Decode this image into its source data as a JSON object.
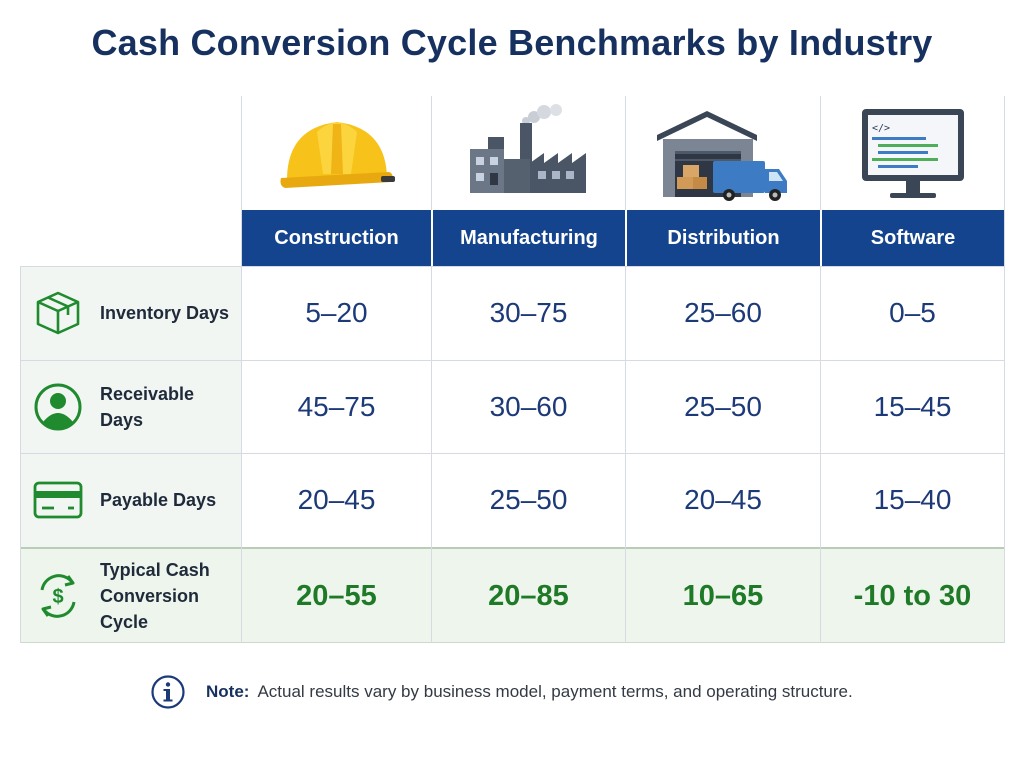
{
  "title": "Cash Conversion Cycle Benchmarks by Industry",
  "colors": {
    "header": "#15448e",
    "accent_green": "#1f7a28",
    "value_blue": "#1d3a78",
    "title": "#16305f"
  },
  "columns": [
    {
      "label": "Construction",
      "icon": "hard-hat-icon"
    },
    {
      "label": "Manufacturing",
      "icon": "factory-icon"
    },
    {
      "label": "Distribution",
      "icon": "warehouse-truck-icon"
    },
    {
      "label": "Software",
      "icon": "code-monitor-icon"
    }
  ],
  "rows": [
    {
      "label": "Inventory Days",
      "icon": "box-icon",
      "values": [
        "5–20",
        "30–75",
        "25–60",
        "0–5"
      ]
    },
    {
      "label": "Receivable Days",
      "icon": "user-circle-icon",
      "values": [
        "45–75",
        "30–60",
        "25–50",
        "15–45"
      ]
    },
    {
      "label": "Payable Days",
      "icon": "credit-card-icon",
      "values": [
        "20–45",
        "25–50",
        "20–45",
        "15–40"
      ]
    }
  ],
  "total": {
    "label_line1": "Typical Cash",
    "label_line2": "Conversion Cycle",
    "icon": "cash-cycle-icon",
    "values": [
      "20–55",
      "20–85",
      "10–65",
      "-10 to 30"
    ]
  },
  "note": {
    "label": "Note:",
    "text": "Actual results vary by business model, payment terms, and operating structure.",
    "icon": "info-icon"
  },
  "chart_data": {
    "type": "table",
    "title": "Cash Conversion Cycle Benchmarks by Industry",
    "columns": [
      "Construction",
      "Manufacturing",
      "Distribution",
      "Software"
    ],
    "rows": [
      {
        "metric": "Inventory Days",
        "values": [
          "5–20",
          "30–75",
          "25–60",
          "0–5"
        ]
      },
      {
        "metric": "Receivable Days",
        "values": [
          "45–75",
          "30–60",
          "25–50",
          "15–45"
        ]
      },
      {
        "metric": "Payable Days",
        "values": [
          "20–45",
          "25–50",
          "20–45",
          "15–40"
        ]
      },
      {
        "metric": "Typical Cash Conversion Cycle",
        "values": [
          "20–55",
          "20–85",
          "10–65",
          "-10 to 30"
        ]
      }
    ]
  }
}
